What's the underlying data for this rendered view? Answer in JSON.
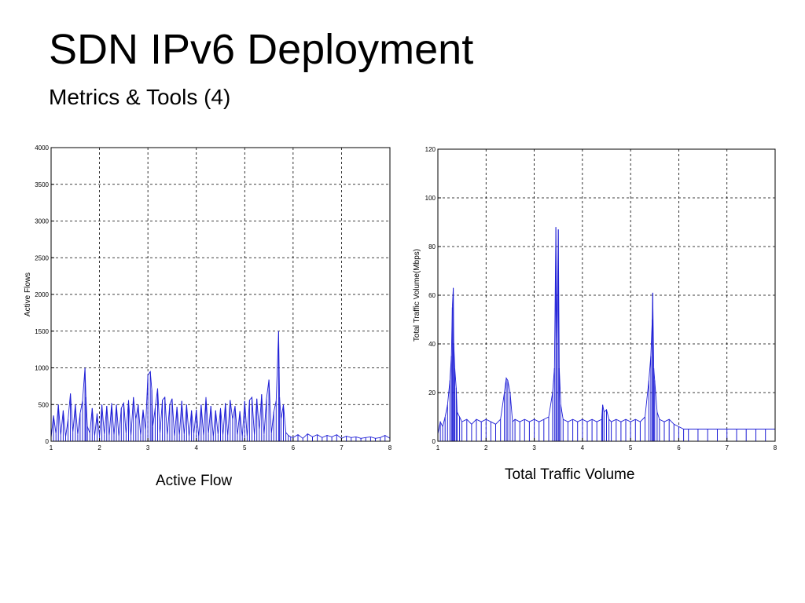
{
  "slide": {
    "title": "SDN IPv6 Deployment",
    "subtitle": "Metrics & Tools (4)"
  },
  "chart_data": [
    {
      "type": "line",
      "caption": "Active Flow",
      "xlabel": "",
      "ylabel": "Active Flows",
      "xlim": [
        1,
        8
      ],
      "ylim": [
        0,
        4000
      ],
      "xticks": [
        "1",
        "2",
        "3",
        "4",
        "5",
        "6",
        "7",
        "8"
      ],
      "yticks": [
        "0",
        "500",
        "1000",
        "1500",
        "2000",
        "2500",
        "3000",
        "3500",
        "4000"
      ],
      "grid": true,
      "color": "#1f1fd6",
      "series": [
        {
          "x": [
            1.0,
            1.05,
            1.1,
            1.15,
            1.2,
            1.25,
            1.3,
            1.35,
            1.4,
            1.45,
            1.5,
            1.55,
            1.6,
            1.65,
            1.7,
            1.72,
            1.75,
            1.8,
            1.85,
            1.9,
            1.95,
            2.0,
            2.05,
            2.1,
            2.15,
            2.2,
            2.25,
            2.3,
            2.35,
            2.4,
            2.45,
            2.5,
            2.55,
            2.6,
            2.65,
            2.7,
            2.75,
            2.8,
            2.85,
            2.9,
            2.95,
            3.0,
            3.05,
            3.08,
            3.1,
            3.15,
            3.2,
            3.25,
            3.3,
            3.35,
            3.4,
            3.45,
            3.5,
            3.55,
            3.6,
            3.65,
            3.7,
            3.75,
            3.8,
            3.85,
            3.9,
            3.95,
            4.0,
            4.05,
            4.1,
            4.15,
            4.2,
            4.25,
            4.3,
            4.35,
            4.4,
            4.45,
            4.5,
            4.55,
            4.6,
            4.65,
            4.7,
            4.75,
            4.8,
            4.85,
            4.9,
            4.95,
            5.0,
            5.05,
            5.1,
            5.15,
            5.2,
            5.25,
            5.3,
            5.35,
            5.4,
            5.45,
            5.5,
            5.55,
            5.6,
            5.65,
            5.7,
            5.72,
            5.75,
            5.8,
            5.85,
            5.9,
            5.95,
            6.0,
            6.1,
            6.2,
            6.3,
            6.4,
            6.5,
            6.6,
            6.7,
            6.8,
            6.9,
            7.0,
            7.1,
            7.2,
            7.3,
            7.4,
            7.5,
            7.6,
            7.7,
            7.8,
            7.9,
            8.0
          ],
          "y": [
            50,
            350,
            100,
            500,
            80,
            420,
            60,
            300,
            650,
            120,
            500,
            90,
            380,
            550,
            1000,
            600,
            200,
            110,
            450,
            70,
            380,
            60,
            500,
            90,
            480,
            70,
            520,
            80,
            500,
            60,
            450,
            520,
            100,
            560,
            70,
            600,
            300,
            500,
            80,
            430,
            150,
            900,
            950,
            700,
            200,
            450,
            720,
            100,
            560,
            600,
            80,
            500,
            580,
            60,
            470,
            80,
            550,
            90,
            500,
            60,
            420,
            100,
            430,
            60,
            500,
            70,
            600,
            100,
            480,
            60,
            420,
            90,
            450,
            80,
            520,
            70,
            560,
            300,
            480,
            80,
            410,
            60,
            550,
            60,
            560,
            600,
            80,
            580,
            150,
            640,
            90,
            580,
            840,
            100,
            400,
            550,
            1500,
            600,
            300,
            500,
            120,
            80,
            60,
            50,
            90,
            40,
            100,
            60,
            90,
            50,
            80,
            60,
            90,
            40,
            70,
            50,
            60,
            40,
            50,
            60,
            40,
            50,
            80,
            40
          ]
        }
      ]
    },
    {
      "type": "line",
      "caption": "Total Traffic Volume",
      "xlabel": "",
      "ylabel": "Total Traffic Volume(Mbps)",
      "xlim": [
        1,
        8
      ],
      "ylim": [
        0,
        120
      ],
      "xticks": [
        "1",
        "2",
        "3",
        "4",
        "5",
        "6",
        "7",
        "8"
      ],
      "yticks": [
        "0",
        "20",
        "40",
        "60",
        "80",
        "100",
        "120"
      ],
      "grid": true,
      "color": "#1f1fd6",
      "series": [
        {
          "x": [
            1.0,
            1.05,
            1.1,
            1.15,
            1.2,
            1.25,
            1.28,
            1.3,
            1.32,
            1.33,
            1.35,
            1.38,
            1.4,
            1.45,
            1.5,
            1.6,
            1.7,
            1.8,
            1.9,
            2.0,
            2.1,
            2.2,
            2.3,
            2.38,
            2.42,
            2.45,
            2.5,
            2.55,
            2.6,
            2.7,
            2.8,
            2.9,
            3.0,
            3.1,
            3.2,
            3.3,
            3.38,
            3.42,
            3.45,
            3.47,
            3.5,
            3.52,
            3.55,
            3.6,
            3.7,
            3.8,
            3.9,
            4.0,
            4.1,
            4.2,
            4.3,
            4.4,
            4.42,
            4.45,
            4.5,
            4.55,
            4.6,
            4.7,
            4.8,
            4.9,
            5.0,
            5.1,
            5.2,
            5.3,
            5.38,
            5.42,
            5.45,
            5.46,
            5.48,
            5.5,
            5.55,
            5.6,
            5.7,
            5.8,
            5.9,
            6.0,
            6.1,
            6.2,
            6.4,
            6.6,
            6.8,
            7.0,
            7.2,
            7.4,
            7.6,
            7.8,
            8.0
          ],
          "y": [
            3,
            8,
            6,
            10,
            15,
            25,
            35,
            55,
            63,
            40,
            30,
            22,
            12,
            10,
            8,
            9,
            7,
            9,
            8,
            9,
            8,
            7,
            9,
            20,
            26,
            25,
            20,
            8,
            9,
            8,
            9,
            8,
            9,
            8,
            9,
            10,
            20,
            30,
            88,
            40,
            87,
            30,
            15,
            9,
            8,
            9,
            8,
            9,
            8,
            9,
            8,
            9,
            15,
            12,
            13,
            9,
            8,
            9,
            8,
            9,
            8,
            9,
            8,
            10,
            25,
            35,
            50,
            61,
            30,
            25,
            12,
            9,
            8,
            9,
            7,
            6,
            5,
            5,
            5,
            5,
            5,
            5,
            5,
            5,
            5,
            5,
            5
          ]
        }
      ]
    }
  ]
}
